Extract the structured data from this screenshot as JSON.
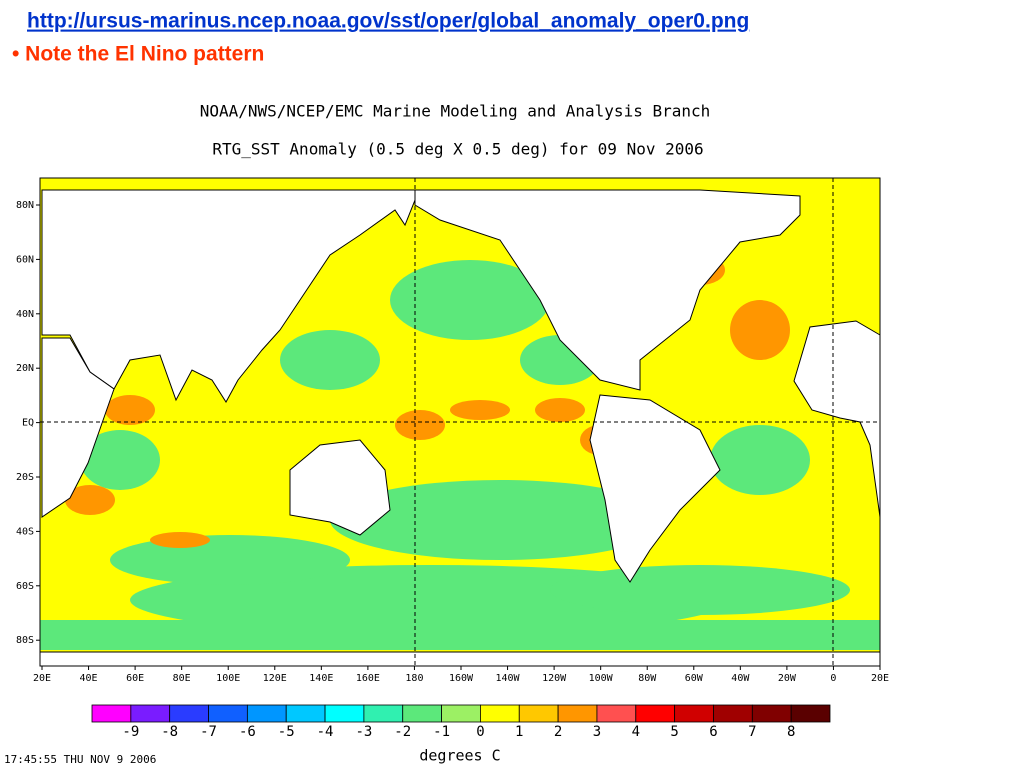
{
  "header": {
    "url": "http://ursus-marinus.ncep.noaa.gov/sst/oper/global_anomaly_oper0.png",
    "bullet": "• Note the El Nino pattern"
  },
  "map": {
    "title": "NOAA/NWS/NCEP/EMC Marine Modeling and Analysis Branch",
    "subtitle": "RTG_SST Anomaly (0.5 deg X 0.5 deg) for 09 Nov 2006",
    "lat_labels": [
      "80N",
      "60N",
      "40N",
      "20N",
      "EQ",
      "20S",
      "40S",
      "60S",
      "80S"
    ],
    "lon_labels": [
      "20E",
      "40E",
      "60E",
      "80E",
      "100E",
      "120E",
      "140E",
      "160E",
      "180",
      "160W",
      "140W",
      "120W",
      "100W",
      "80W",
      "60W",
      "40W",
      "20W",
      "0",
      "20E"
    ],
    "colorbar": {
      "labels": [
        -9,
        -8,
        -7,
        -6,
        -5,
        -4,
        -3,
        -2,
        -1,
        0,
        1,
        2,
        3,
        4,
        5,
        6,
        7,
        8
      ],
      "colors": [
        "#ff00ff",
        "#7a1cff",
        "#2a3cff",
        "#1060ff",
        "#0096ff",
        "#00c8ff",
        "#00ffff",
        "#30f0b0",
        "#5ce87b",
        "#9cf064",
        "#ffff00",
        "#ffc800",
        "#ff9600",
        "#ff5050",
        "#ff0000",
        "#d00000",
        "#a00000",
        "#800000",
        "#5a0000"
      ],
      "unit": "degrees C"
    },
    "timestamp": "17:45:55  THU NOV 9 2006"
  }
}
